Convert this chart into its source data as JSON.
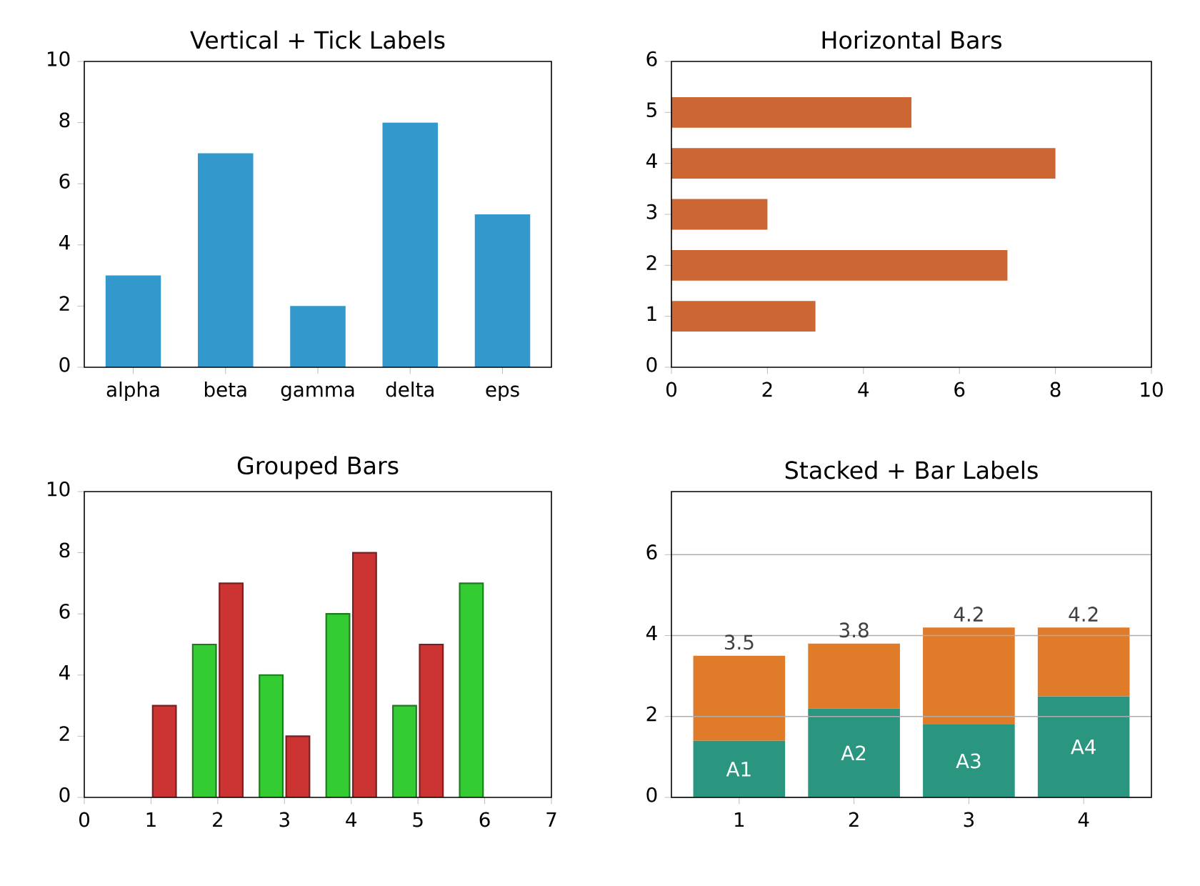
{
  "chart_data": [
    {
      "type": "bar",
      "title": "Vertical + Tick Labels",
      "categories": [
        "alpha",
        "beta",
        "gamma",
        "delta",
        "eps"
      ],
      "values": [
        3,
        7,
        2,
        8,
        5
      ],
      "color": "#3399cc",
      "ylim": [
        0,
        10
      ],
      "yticks": [
        0,
        2,
        4,
        6,
        8,
        10
      ]
    },
    {
      "type": "bar",
      "title": "Horizontal Bars",
      "orientation": "horizontal",
      "x": [
        1,
        2,
        3,
        4,
        5
      ],
      "values": [
        3,
        7,
        2,
        8,
        5
      ],
      "color": "#cc6633",
      "xlim": [
        0,
        10
      ],
      "xticks": [
        0,
        2,
        4,
        6,
        8,
        10
      ],
      "ylim": [
        0,
        6
      ],
      "yticks": [
        0,
        1,
        2,
        3,
        4,
        5,
        6
      ]
    },
    {
      "type": "bar",
      "title": "Grouped Bars",
      "series": [
        {
          "color": "#33cc33",
          "x": [
            1.8,
            2.8,
            3.8,
            4.8,
            5.8
          ],
          "values": [
            5,
            4,
            6,
            3,
            7
          ]
        },
        {
          "color": "#cc3333",
          "x": [
            1.2,
            2.2,
            3.2,
            4.2,
            5.2
          ],
          "values": [
            3,
            7,
            2,
            8,
            5
          ]
        }
      ],
      "xlim": [
        0,
        7
      ],
      "xticks": [
        0,
        1,
        2,
        3,
        4,
        5,
        6,
        7
      ],
      "ylim": [
        0,
        10
      ],
      "yticks": [
        0,
        2,
        4,
        6,
        8,
        10
      ]
    },
    {
      "type": "bar",
      "title": "Stacked + Bar Labels",
      "stacked": true,
      "categories": [
        "1",
        "2",
        "3",
        "4"
      ],
      "series": [
        {
          "color": "#2a9680",
          "values": [
            1.4,
            2.2,
            1.8,
            2.5
          ],
          "value_labels": [
            "A1",
            "A2",
            "A3",
            "A4"
          ]
        },
        {
          "color": "#e07b2a",
          "values": [
            2.1,
            1.6,
            2.4,
            1.7
          ]
        }
      ],
      "totals": [
        "3.5",
        "3.8",
        "4.2",
        "4.2"
      ],
      "ylim": [
        0,
        7.56
      ],
      "yticks": [
        0,
        2,
        4,
        6
      ],
      "grid": "y"
    }
  ]
}
